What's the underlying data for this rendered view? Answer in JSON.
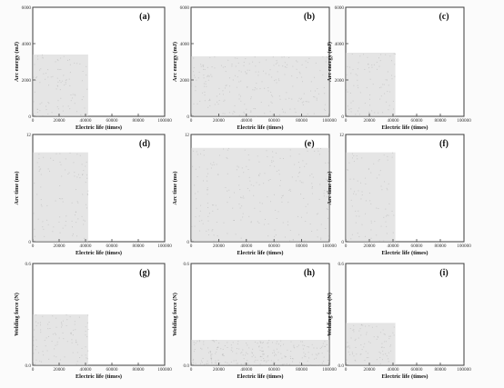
{
  "chart_data": [
    {
      "panel": "(a)",
      "type": "scatter",
      "xlabel": "Electric life (times)",
      "ylabel": "Arc energy (mJ)",
      "xlim": [
        0,
        100000
      ],
      "ylim": [
        0,
        6000
      ],
      "x_ticks": [
        "0",
        "20000",
        "40000",
        "60000",
        "80000",
        "100000"
      ],
      "y_ticks": [
        "0",
        "2000",
        "4000",
        "6000"
      ],
      "series": [
        {
          "x_range": [
            0,
            42000
          ],
          "values_mean": 2000,
          "values_max": 3400
        }
      ]
    },
    {
      "panel": "(b)",
      "type": "scatter",
      "xlabel": "Electric life (times)",
      "ylabel": "Arc energy (mJ)",
      "xlim": [
        0,
        100000
      ],
      "ylim": [
        0,
        6000
      ],
      "x_ticks": [
        "0",
        "20000",
        "40000",
        "60000",
        "80000",
        "100000"
      ],
      "y_ticks": [
        "0",
        "2000",
        "4000",
        "6000"
      ],
      "series": [
        {
          "x_range": [
            0,
            100000
          ],
          "values_mean": 1900,
          "values_max": 3300
        }
      ]
    },
    {
      "panel": "(c)",
      "type": "scatter",
      "xlabel": "Electric life (times)",
      "ylabel": "Arc energy (mJ)",
      "xlim": [
        0,
        100000
      ],
      "ylim": [
        0,
        6000
      ],
      "x_ticks": [
        "0",
        "20000",
        "40000",
        "60000",
        "80000",
        "100000"
      ],
      "y_ticks": [
        "0",
        "2000",
        "4000",
        "6000"
      ],
      "series": [
        {
          "x_range": [
            0,
            42000
          ],
          "values_mean": 1600,
          "values_max": 3500
        }
      ]
    },
    {
      "panel": "(d)",
      "type": "scatter",
      "xlabel": "Electric life (times)",
      "ylabel": "Arc time (ms)",
      "xlim": [
        0,
        100000
      ],
      "ylim": [
        0,
        12
      ],
      "x_ticks": [
        "0",
        "20000",
        "40000",
        "60000",
        "80000",
        "100000"
      ],
      "y_ticks": [
        "0",
        "12"
      ],
      "series": [
        {
          "x_range": [
            0,
            42000
          ],
          "values_mean": 5,
          "values_max": 10
        }
      ]
    },
    {
      "panel": "(e)",
      "type": "scatter",
      "xlabel": "Electric life (times)",
      "ylabel": "Arc time (ms)",
      "xlim": [
        0,
        100000
      ],
      "ylim": [
        0,
        12
      ],
      "x_ticks": [
        "0",
        "20000",
        "40000",
        "60000",
        "80000",
        "100000"
      ],
      "y_ticks": [
        "0",
        "12"
      ],
      "series": [
        {
          "x_range": [
            0,
            100000
          ],
          "values_mean": 5,
          "values_max": 10.5
        }
      ]
    },
    {
      "panel": "(f)",
      "type": "scatter",
      "xlabel": "Electric life (times)",
      "ylabel": "Arc time (ms)",
      "xlim": [
        0,
        100000
      ],
      "ylim": [
        0,
        12
      ],
      "x_ticks": [
        "0",
        "20000",
        "40000",
        "60000",
        "80000",
        "100000"
      ],
      "y_ticks": [
        "0",
        "12"
      ],
      "series": [
        {
          "x_range": [
            0,
            42000
          ],
          "values_mean": 4,
          "values_max": 10
        }
      ]
    },
    {
      "panel": "(g)",
      "type": "scatter",
      "xlabel": "Electric life (times)",
      "ylabel": "Welding force (N)",
      "xlim": [
        0,
        100000
      ],
      "ylim": [
        0,
        0.6
      ],
      "x_ticks": [
        "0",
        "20000",
        "40000",
        "60000",
        "80000",
        "100000"
      ],
      "y_ticks": [
        "0.0",
        "0.6"
      ],
      "series": [
        {
          "x_range": [
            0,
            42000
          ],
          "values_mean": 0.05,
          "values_max": 0.3
        }
      ]
    },
    {
      "panel": "(h)",
      "type": "scatter",
      "xlabel": "Electric life (times)",
      "ylabel": "Welding force (N)",
      "xlim": [
        0,
        100000
      ],
      "ylim": [
        0,
        0.6
      ],
      "x_ticks": [
        "0",
        "20000",
        "40000",
        "60000",
        "80000",
        "100000"
      ],
      "y_ticks": [
        "0.0",
        "0.6"
      ],
      "series": [
        {
          "x_range": [
            0,
            100000
          ],
          "values_mean": 0.04,
          "values_max": 0.15
        }
      ]
    },
    {
      "panel": "(i)",
      "type": "scatter",
      "xlabel": "Electric life (times)",
      "ylabel": "Welding force (N)",
      "xlim": [
        0,
        100000
      ],
      "ylim": [
        0,
        0.6
      ],
      "x_ticks": [
        "0",
        "20000",
        "40000",
        "60000",
        "80000",
        "100000"
      ],
      "y_ticks": [
        "0.0",
        "0.6"
      ],
      "series": [
        {
          "x_range": [
            0,
            42000
          ],
          "values_mean": 0.06,
          "values_max": 0.25
        }
      ]
    }
  ]
}
